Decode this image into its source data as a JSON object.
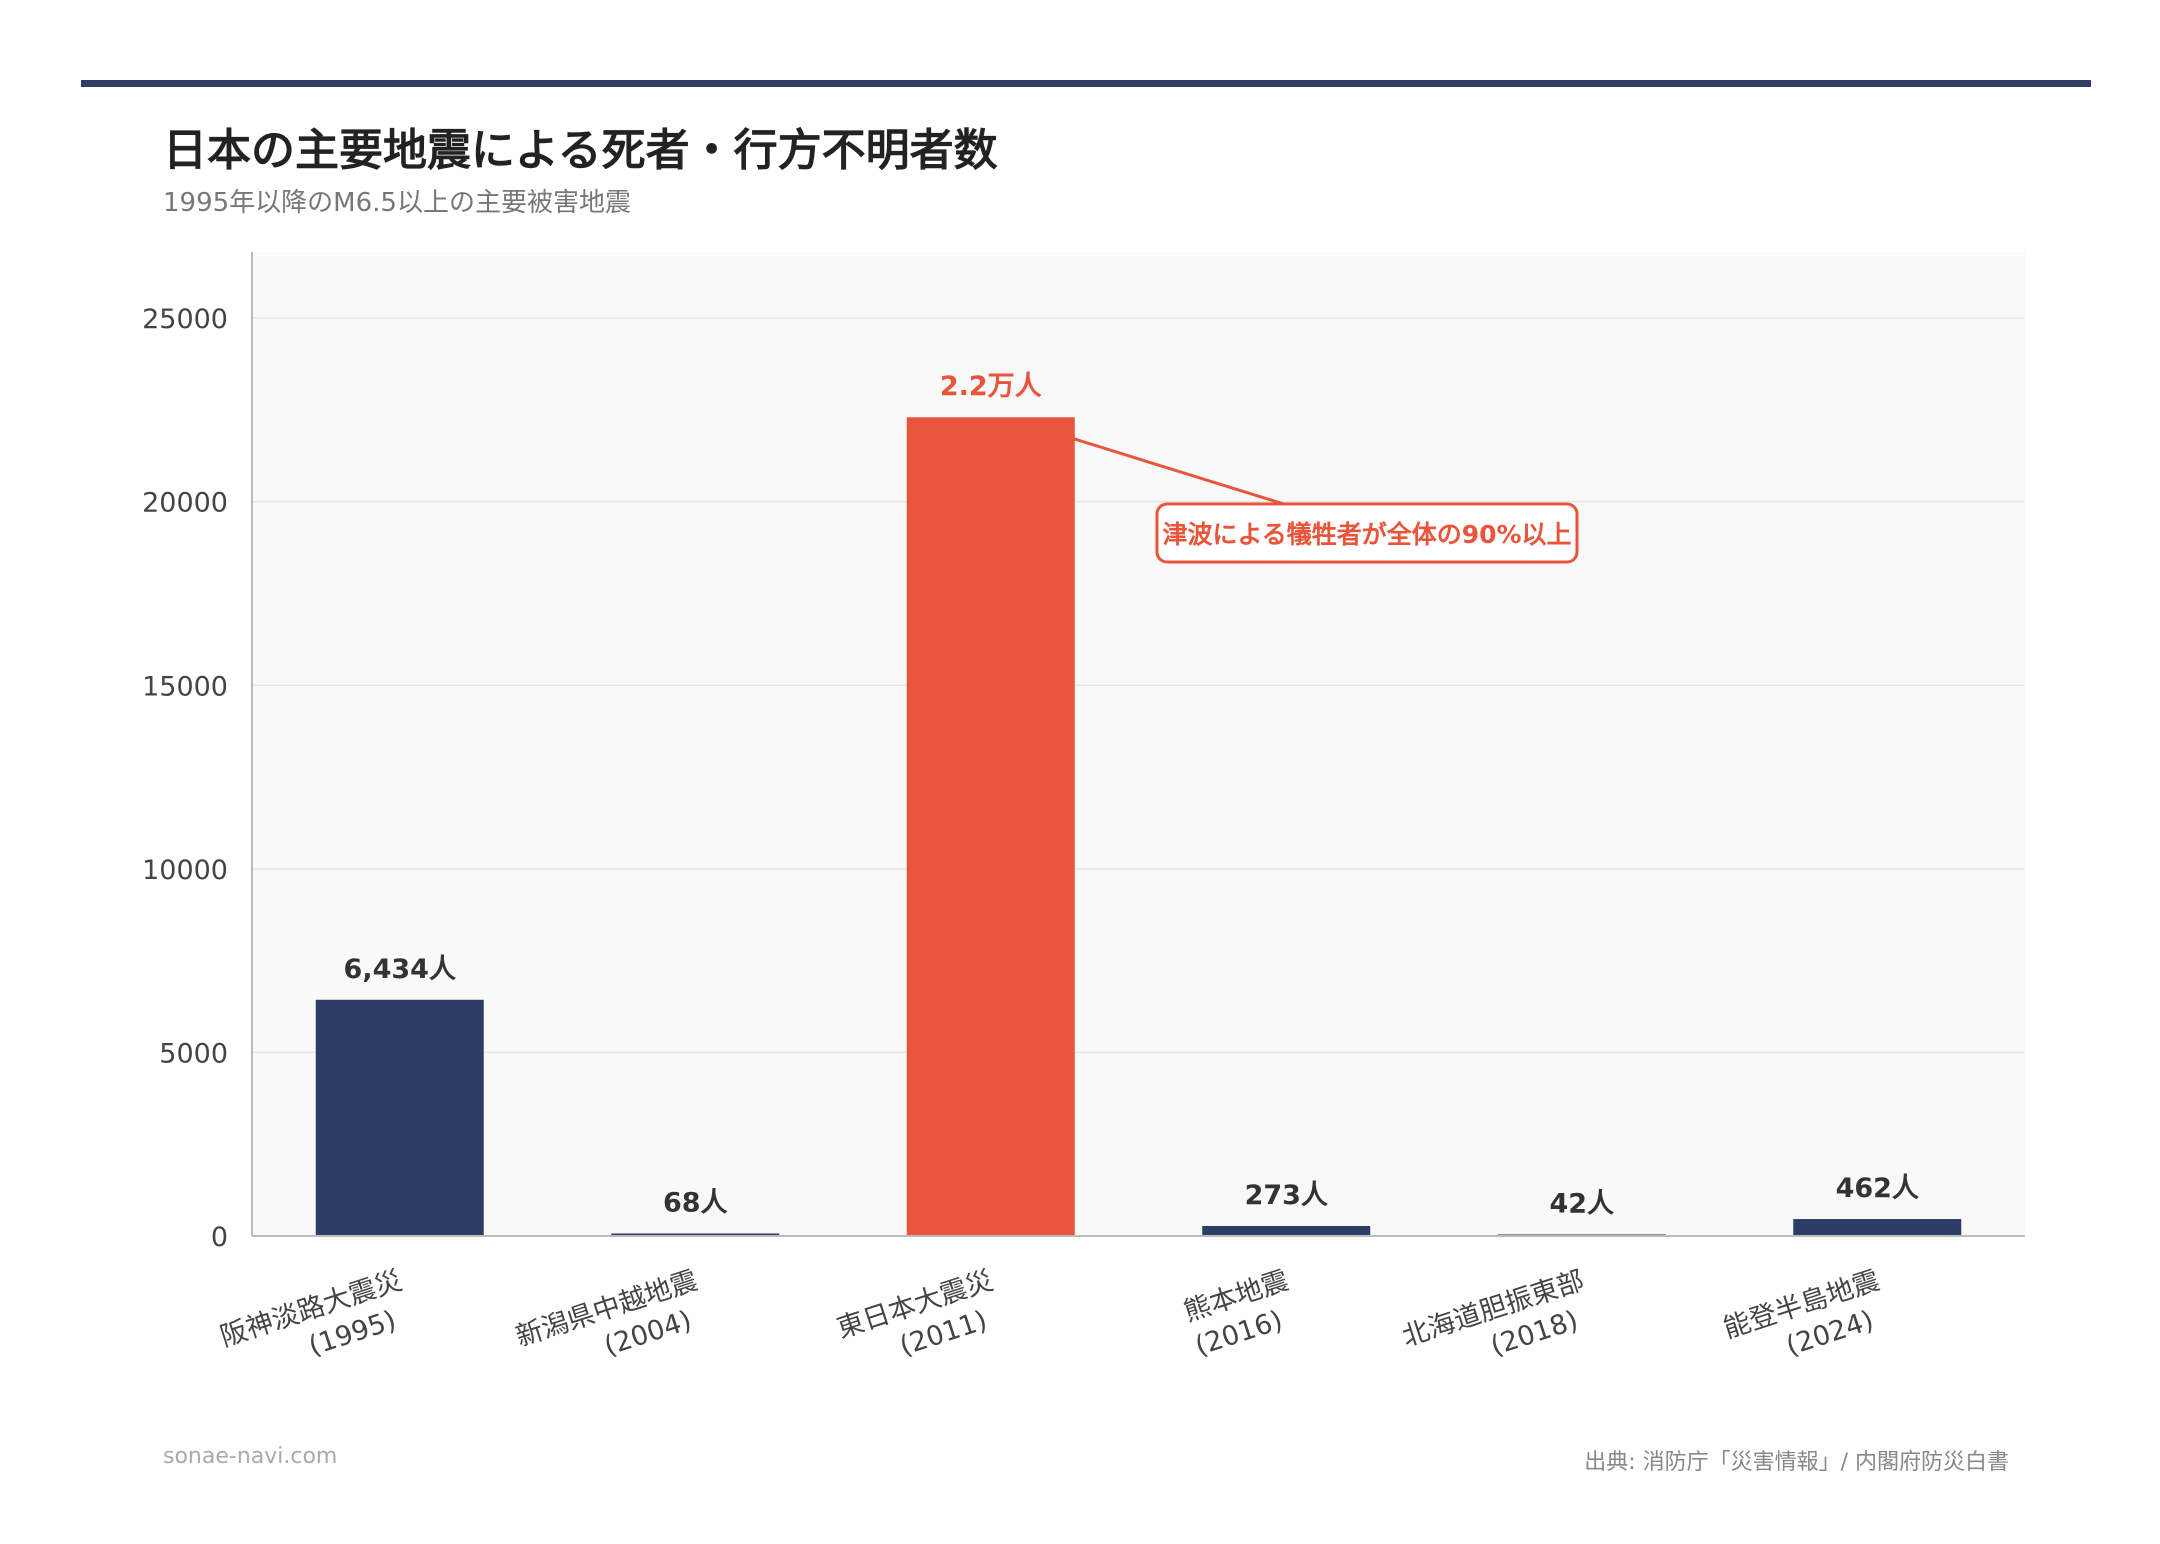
{
  "title": "日本の主要地震による死者・行方不明者数",
  "subtitle": "1995年以降のM6.5以上の主要被害地震",
  "footer": {
    "site": "sonae-navi.com",
    "source": "出典: 消防庁「災害情報」/ 内閣府防災白書"
  },
  "colors": {
    "navy": "#2d3d66",
    "highlight": "#e8553a",
    "plot_bg": "#f9f9f9",
    "grid": "#e6e6e6"
  },
  "chart_data": {
    "type": "bar",
    "title": "日本の主要地震による死者・行方不明者数",
    "subtitle": "1995年以降のM6.5以上の主要被害地震",
    "xlabel": "",
    "ylabel": "",
    "ylim": [
      0,
      26800
    ],
    "yticks": [
      0,
      5000,
      10000,
      15000,
      20000,
      25000
    ],
    "grid": true,
    "categories": [
      [
        "阪神淡路大震災",
        "(1995)"
      ],
      [
        "新潟県中越地震",
        "(2004)"
      ],
      [
        "東日本大震災",
        "(2011)"
      ],
      [
        "熊本地震",
        "(2016)"
      ],
      [
        "北海道胆振東部",
        "(2018)"
      ],
      [
        "能登半島地震",
        "(2024)"
      ]
    ],
    "values": [
      6434,
      68,
      22300,
      273,
      42,
      462
    ],
    "labels": [
      "6,434人",
      "68人",
      "2.2万人",
      "273人",
      "42人",
      "462人"
    ],
    "highlight_index": 2,
    "annotation": {
      "text": "津波による犠牲者が全体の90%以上",
      "target_index": 2
    }
  }
}
